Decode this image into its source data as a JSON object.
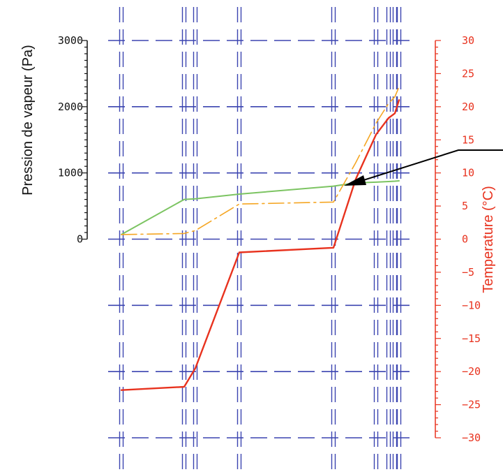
{
  "chart_data": {
    "type": "line",
    "title": "",
    "ylabel_left": "Pression de vapeur (Pa)",
    "ylabel_right": "Temperature (°C)",
    "ylim_left": [
      0,
      3000
    ],
    "ylim_right": [
      -30,
      30
    ],
    "yticks_left": [
      0,
      1000,
      2000,
      3000
    ],
    "yticks_right": [
      30,
      25,
      20,
      15,
      10,
      5,
      0,
      -5,
      -10,
      -15,
      -20,
      -25,
      -30
    ],
    "grid": true,
    "colors": {
      "grid": "#3b44b0",
      "temperature": "#e8321e",
      "saturation": "#f5a623",
      "vapour": "#7cc462",
      "axis_left": "#111111",
      "axis_right": "#e8321e",
      "arrow": "#000000"
    },
    "series": [
      {
        "key": "temperature",
        "axis": "right",
        "x": [
          0,
          2.55,
          2.7,
          3.5,
          7.05,
          7.7,
          8.3,
          8.7,
          8.9,
          9.0
        ],
        "values": [
          -22.8,
          -22.3,
          -19.5,
          -2.0,
          -1.3,
          9.0,
          15.8,
          18.3,
          19.0,
          21.0
        ]
      },
      {
        "key": "saturation",
        "axis": "left",
        "x": [
          0,
          2.55,
          2.7,
          3.5,
          7.05,
          7.7,
          8.3,
          8.7,
          8.9,
          9.0
        ],
        "values": [
          70,
          85,
          130,
          530,
          560,
          1150,
          1750,
          2050,
          2150,
          2300
        ]
      },
      {
        "key": "vapour",
        "axis": "left",
        "x": [
          0,
          2.55,
          2.7,
          3.5,
          7.05,
          7.7,
          8.3,
          8.7,
          8.9,
          9.0
        ],
        "values": [
          70,
          600,
          610,
          680,
          800,
          850,
          860,
          870,
          875,
          880
        ]
      }
    ],
    "layer_boundaries": [
      0,
      2.55,
      2.7,
      3.5,
      7.05,
      8.3,
      8.7,
      8.9,
      9.0
    ]
  }
}
